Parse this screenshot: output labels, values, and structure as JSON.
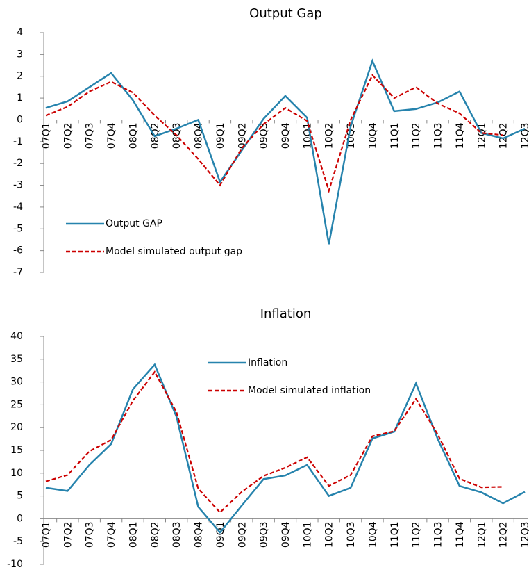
{
  "chart_data": [
    {
      "type": "line",
      "title": "Output Gap",
      "categories": [
        "07Q1",
        "07Q2",
        "07Q3",
        "07Q4",
        "08Q1",
        "08Q2",
        "08Q3",
        "08Q4",
        "09Q1",
        "09Q2",
        "09Q3",
        "09Q4",
        "10Q1",
        "10Q2",
        "10Q3",
        "10Q4",
        "11Q1",
        "11Q2",
        "11Q3",
        "11Q4",
        "12Q1",
        "12Q2",
        "12Q3"
      ],
      "series": [
        {
          "name": "Output GAP",
          "color": "#2683ad",
          "dashed": false,
          "values": [
            0.55,
            0.85,
            1.5,
            2.15,
            0.9,
            -0.75,
            -0.4,
            0.0,
            -2.85,
            -1.4,
            0.05,
            1.1,
            0.1,
            -5.7,
            -0.3,
            2.7,
            0.4,
            0.5,
            0.8,
            1.3,
            -0.6,
            -0.85,
            -0.4
          ]
        },
        {
          "name": "Model simulated output  gap",
          "color": "#cc0000",
          "dashed": true,
          "values": [
            0.2,
            0.6,
            1.3,
            1.75,
            1.25,
            0.2,
            -0.7,
            -1.8,
            -3.0,
            -1.3,
            -0.2,
            0.55,
            -0.05,
            -3.25,
            0.0,
            2.05,
            1.0,
            1.5,
            0.75,
            0.3,
            -0.6,
            -0.7,
            null
          ]
        }
      ],
      "ylim": [
        -7,
        4
      ],
      "yticks": [
        -7,
        -6,
        -5,
        -4,
        -3,
        -2,
        -1,
        0,
        1,
        2,
        3,
        4
      ],
      "legend": "lower left"
    },
    {
      "type": "line",
      "title": "Inflation",
      "categories": [
        "07Q1",
        "07Q2",
        "07Q3",
        "07Q4",
        "08Q1",
        "08Q2",
        "08Q3",
        "08Q4",
        "09Q1",
        "09Q2",
        "09Q3",
        "09Q4",
        "10Q1",
        "10Q2",
        "10Q3",
        "10Q4",
        "11Q1",
        "11Q2",
        "11Q3",
        "11Q4",
        "12Q1",
        "12Q2",
        "12Q3"
      ],
      "series": [
        {
          "name": "Inflation",
          "color": "#2683ad",
          "dashed": false,
          "values": [
            6.8,
            6.1,
            11.8,
            16.4,
            28.4,
            33.8,
            22.4,
            2.6,
            -3.0,
            2.9,
            8.7,
            9.5,
            11.8,
            5.0,
            6.8,
            17.6,
            19.1,
            29.7,
            17.5,
            7.2,
            5.8,
            3.4,
            5.9
          ]
        },
        {
          "name": "Model simulated inflation",
          "color": "#cc0000",
          "dashed": true,
          "values": [
            8.2,
            9.6,
            14.8,
            17.3,
            25.9,
            32.2,
            23.4,
            6.6,
            1.4,
            5.9,
            9.4,
            11.2,
            13.5,
            7.2,
            9.6,
            18.1,
            19.2,
            26.3,
            18.5,
            8.8,
            6.9,
            7.0,
            null
          ]
        }
      ],
      "ylim": [
        -10,
        40
      ],
      "yticks": [
        -10,
        -5,
        0,
        5,
        10,
        15,
        20,
        25,
        30,
        35,
        40
      ],
      "legend": "upper center"
    }
  ]
}
